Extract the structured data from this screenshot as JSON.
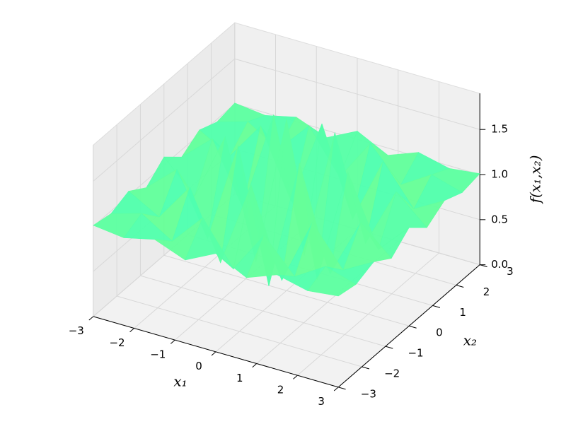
{
  "chart_data": {
    "type": "surface3d",
    "colormap": "jet",
    "x_label": "x₁",
    "y_label": "x₂",
    "z_label": "f(x₁,x₂)",
    "x": [
      -3,
      -2.25,
      -1.5,
      -0.75,
      0,
      0.75,
      1.5,
      2.25,
      3
    ],
    "y": [
      -3,
      -2.25,
      -1.5,
      -0.75,
      0,
      0.75,
      1.5,
      2.25,
      3
    ],
    "z": [
      [
        1.01,
        0.97,
        1.05,
        0.92,
        1.09,
        0.92,
        1.05,
        0.97,
        1.01
      ],
      [
        0.97,
        1.07,
        0.86,
        1.22,
        0.75,
        1.22,
        0.86,
        1.07,
        0.97
      ],
      [
        1.05,
        0.86,
        1.29,
        0.55,
        1.51,
        0.55,
        1.29,
        0.86,
        1.05
      ],
      [
        0.92,
        1.22,
        0.55,
        1.68,
        0.22,
        1.68,
        0.55,
        1.22,
        0.92
      ],
      [
        1.09,
        0.75,
        1.51,
        0.22,
        1.9,
        0.22,
        1.51,
        0.75,
        1.09
      ],
      [
        0.92,
        1.22,
        0.55,
        1.68,
        0.22,
        1.68,
        0.55,
        1.22,
        0.92
      ],
      [
        1.05,
        0.86,
        1.29,
        0.55,
        1.51,
        0.55,
        1.29,
        0.86,
        1.05
      ],
      [
        0.97,
        1.07,
        0.86,
        1.22,
        0.75,
        1.22,
        0.86,
        1.07,
        0.97
      ],
      [
        1.01,
        0.97,
        1.05,
        0.92,
        1.09,
        0.92,
        1.05,
        0.97,
        1.01
      ]
    ],
    "xlim": [
      -3,
      3
    ],
    "ylim": [
      -3,
      3
    ],
    "zlim": [
      0,
      1.9
    ],
    "xticks": [
      {
        "value": -3,
        "label": "−3"
      },
      {
        "value": -2,
        "label": "−2"
      },
      {
        "value": -1,
        "label": "−1"
      },
      0,
      1,
      2,
      3
    ],
    "yticks": [
      {
        "value": -3,
        "label": "−3"
      },
      {
        "value": -2,
        "label": "−2"
      },
      {
        "value": -1,
        "label": "−1"
      },
      0,
      1,
      2,
      3
    ],
    "zticks": [
      {
        "value": 0,
        "label": "0.0"
      },
      {
        "value": 0.5,
        "label": "0.5"
      },
      {
        "value": 1,
        "label": "1.0"
      },
      {
        "value": 1.5,
        "label": "1.5"
      }
    ],
    "grid": true
  }
}
